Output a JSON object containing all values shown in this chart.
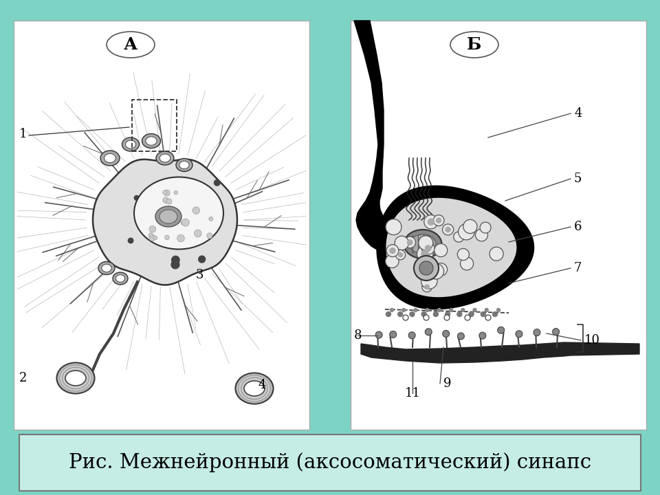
{
  "background_color": "#7DD4C5",
  "title_text": "Рис. Межнейронный (аксосоматический) синапс",
  "title_fontsize": 21,
  "title_box_facecolor": "#C5EDE6",
  "title_box_edgecolor": "#777777",
  "panel_bg": "#ffffff",
  "panel_A_label": "А",
  "panel_B_label": "Б",
  "label_fontsize": 14,
  "number_fontsize": 13,
  "line_color": "#333333"
}
